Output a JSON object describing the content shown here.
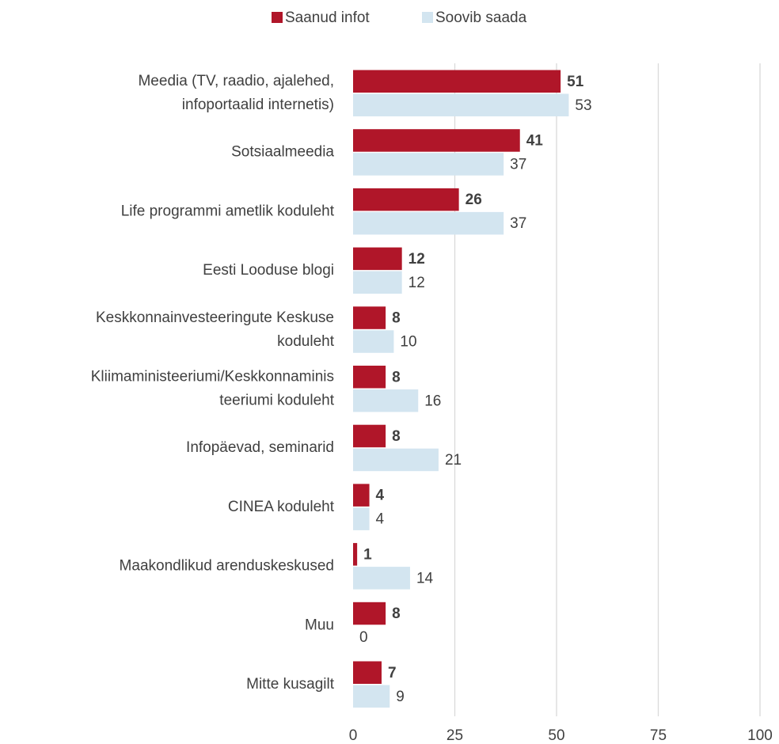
{
  "chart_data": {
    "type": "bar",
    "orientation": "horizontal",
    "categories": [
      "Meedia (TV, raadio, ajalehed,\ninfoportaalid internetis)",
      "Sotsiaalmeedia",
      "Life programmi ametlik koduleht",
      "Eesti Looduse blogi",
      "Keskkonnainvesteeringute Keskuse\nkoduleht",
      "Kliimaministeeriumi/Keskkonnaminis\nteeriumi koduleht",
      "Infopäevad, seminarid",
      "CINEA koduleht",
      "Maakondlikud arenduskeskused",
      "Muu",
      "Mitte kusagilt"
    ],
    "series": [
      {
        "name": "Saanud infot",
        "color": "#b01629",
        "values": [
          51,
          41,
          26,
          12,
          8,
          8,
          8,
          4,
          1,
          8,
          7
        ]
      },
      {
        "name": "Soovib saada",
        "color": "#d3e5f0",
        "values": [
          53,
          37,
          37,
          12,
          10,
          16,
          21,
          4,
          14,
          0,
          9
        ]
      }
    ],
    "xlim": [
      0,
      100
    ],
    "xticks": [
      0,
      25,
      50,
      75,
      100
    ],
    "grid": true,
    "legend": "top"
  }
}
